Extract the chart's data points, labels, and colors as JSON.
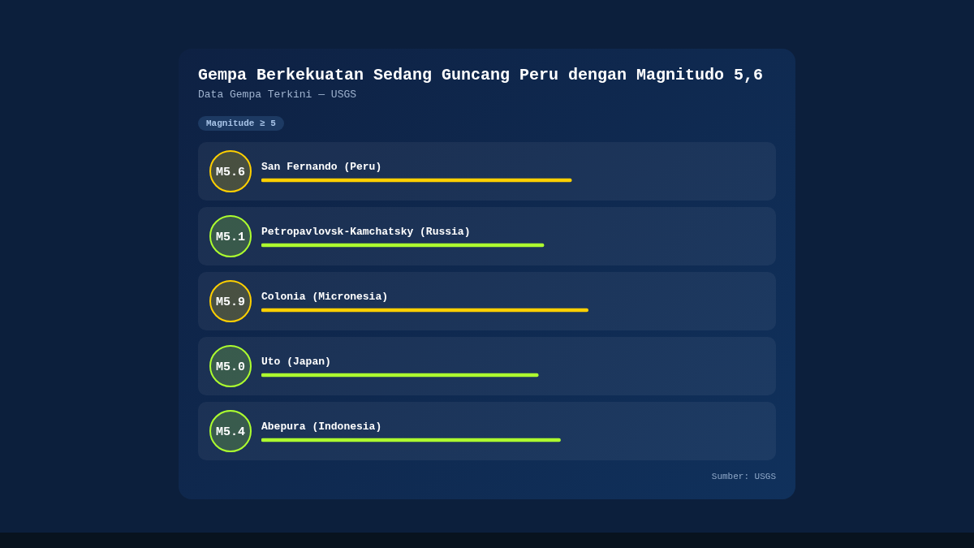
{
  "chart_data": {
    "type": "bar",
    "orientation": "horizontal",
    "title": "Gempa Berkekuatan Sedang Guncang Peru dengan Magnitudo 5,6",
    "subtitle": "Data Gempa Terkini — USGS",
    "categories": [
      "San Fernando (Peru)",
      "Petropavlovsk-Kamchatsky (Russia)",
      "Colonia (Micronesia)",
      "Uto (Japan)",
      "Abepura (Indonesia)"
    ],
    "values": [
      5.6,
      5.1,
      5.9,
      5.0,
      5.4
    ],
    "colors": [
      "#ffd000",
      "#adff2f",
      "#ffd000",
      "#adff2f",
      "#adff2f"
    ],
    "value_labels": [
      "M5.6",
      "M5.1",
      "M5.9",
      "M5.0",
      "M5.4"
    ],
    "tick_labels": "y",
    "annotations": [
      "Magnitude ≥ 5",
      "Sumber: USGS"
    ]
  }
}
